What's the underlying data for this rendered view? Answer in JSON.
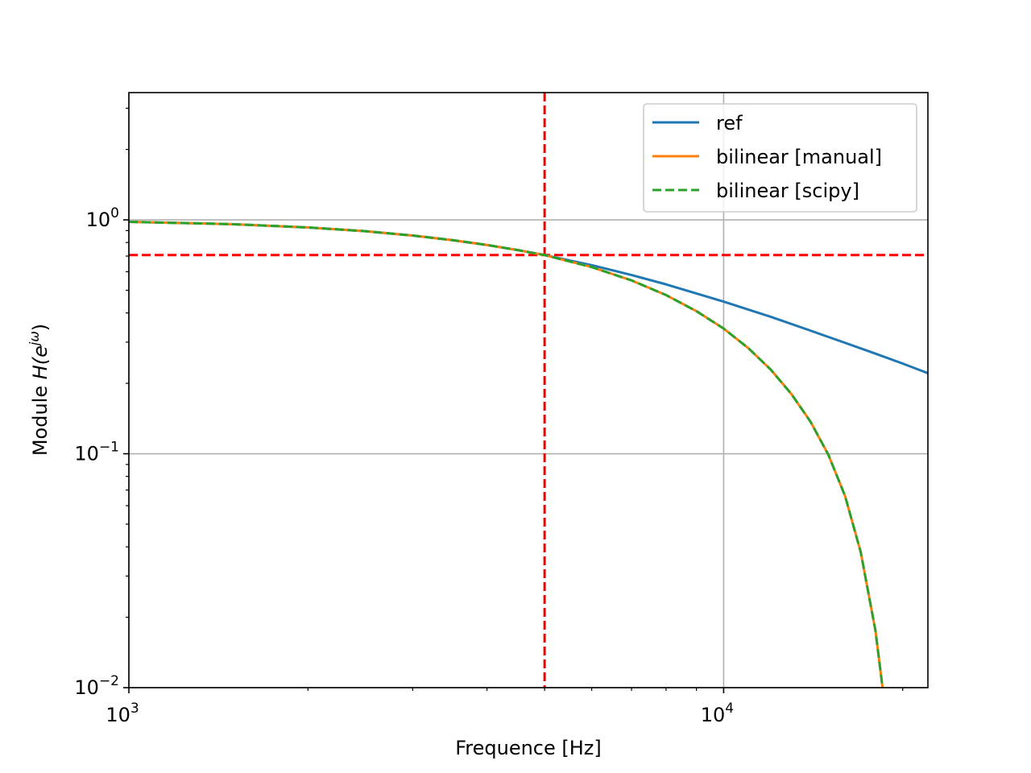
{
  "chart_data": {
    "type": "line",
    "xlabel": "Frequence [Hz]",
    "ylabel_text": "Module ",
    "ylabel_math": {
      "base": "H(e",
      "sup": "jω",
      "close": ")"
    },
    "xscale": "log",
    "yscale": "log",
    "xlim": [
      1000,
      22050
    ],
    "ylim": [
      0.01,
      3.5
    ],
    "grid": true,
    "legend_position": "top-right",
    "x_ticks": [
      {
        "value": 1000,
        "base": "10",
        "exp": "3"
      },
      {
        "value": 10000,
        "base": "10",
        "exp": "4"
      }
    ],
    "y_ticks": [
      {
        "value": 1,
        "base": "10",
        "exp": "0"
      },
      {
        "value": 0.1,
        "base": "10",
        "exp": "−1"
      },
      {
        "value": 0.01,
        "base": "10",
        "exp": "−2"
      }
    ],
    "cutoff": {
      "x": 5000,
      "y": 0.7071,
      "color": "#ff0000"
    },
    "series": [
      {
        "name": "ref",
        "color": "#1f77b4",
        "dash": "solid",
        "x": [
          1000,
          1500,
          2000,
          2500,
          3000,
          3500,
          4000,
          4500,
          5000,
          6000,
          7000,
          8000,
          10000,
          12000,
          14000,
          16000,
          18000,
          20000,
          22050
        ],
        "y": [
          0.981,
          0.958,
          0.928,
          0.894,
          0.857,
          0.819,
          0.781,
          0.743,
          0.707,
          0.64,
          0.581,
          0.53,
          0.447,
          0.385,
          0.336,
          0.298,
          0.268,
          0.243,
          0.221
        ]
      },
      {
        "name": "bilinear [manual]",
        "color": "#ff7f0e",
        "dash": "solid",
        "x": [
          1000,
          1500,
          2000,
          2500,
          3000,
          3500,
          4000,
          4500,
          5000,
          6000,
          7000,
          8000,
          9000,
          10000,
          11000,
          12000,
          13000,
          14000,
          15000,
          16000,
          17000,
          18000,
          18500
        ],
        "y": [
          0.981,
          0.958,
          0.928,
          0.894,
          0.857,
          0.819,
          0.781,
          0.743,
          0.707,
          0.628,
          0.551,
          0.477,
          0.407,
          0.343,
          0.283,
          0.229,
          0.18,
          0.137,
          0.099,
          0.066,
          0.038,
          0.0175,
          0.01
        ]
      },
      {
        "name": "bilinear [scipy]",
        "color": "#2ca02c",
        "dash": "dashed",
        "x": [
          1000,
          1500,
          2000,
          2500,
          3000,
          3500,
          4000,
          4500,
          5000,
          6000,
          7000,
          8000,
          9000,
          10000,
          11000,
          12000,
          13000,
          14000,
          15000,
          16000,
          17000,
          18000,
          18500
        ],
        "y": [
          0.981,
          0.958,
          0.928,
          0.894,
          0.857,
          0.819,
          0.781,
          0.743,
          0.707,
          0.628,
          0.551,
          0.477,
          0.407,
          0.343,
          0.283,
          0.229,
          0.18,
          0.137,
          0.099,
          0.066,
          0.038,
          0.0175,
          0.01
        ]
      }
    ]
  }
}
